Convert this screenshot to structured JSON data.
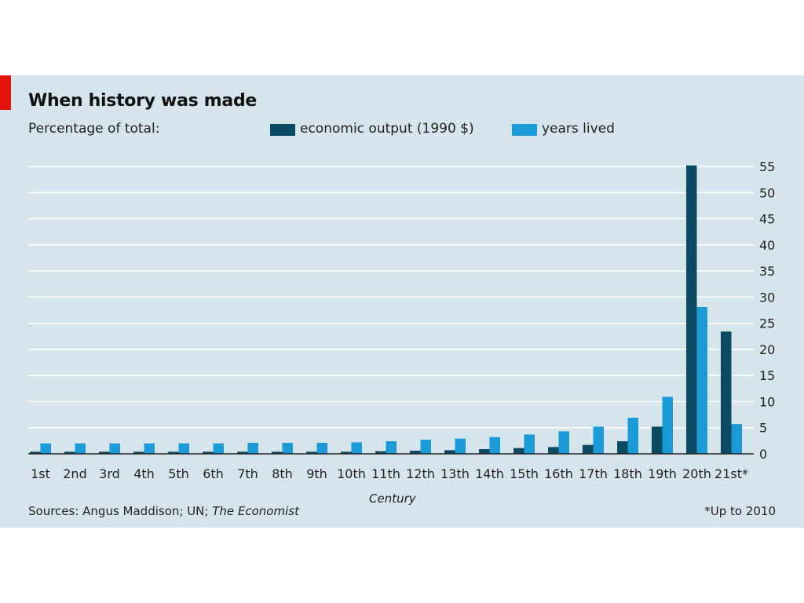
{
  "colors": {
    "background": "#d6e4ec",
    "brand_red": "#e3120b",
    "gridline": "#ffffff"
  },
  "header": {
    "title": "When history was made",
    "subtitle": "Percentage of total:"
  },
  "footer": {
    "source_prefix": "Sources: Angus Maddison; UN; ",
    "source_italic": "The Economist",
    "footnote": "*Up to 2010"
  },
  "chart_data": {
    "type": "bar",
    "title": "When history was made",
    "subtitle": "Percentage of total:",
    "xlabel": "Century",
    "ylabel": "",
    "ylim": [
      0,
      55
    ],
    "yticks": [
      0,
      5,
      10,
      15,
      20,
      25,
      30,
      35,
      40,
      45,
      50,
      55
    ],
    "grid": true,
    "legend_position": "top",
    "yaxis_side": "right",
    "categories": [
      "1st",
      "2nd",
      "3rd",
      "4th",
      "5th",
      "6th",
      "7th",
      "8th",
      "9th",
      "10th",
      "11th",
      "12th",
      "13th",
      "14th",
      "15th",
      "16th",
      "17th",
      "18th",
      "19th",
      "20th",
      "21st*"
    ],
    "series": [
      {
        "name": "economic output (1990 $)",
        "color": "#0b4a63",
        "values": [
          0.4,
          0.4,
          0.4,
          0.4,
          0.4,
          0.4,
          0.4,
          0.4,
          0.4,
          0.4,
          0.5,
          0.6,
          0.7,
          0.9,
          1.1,
          1.3,
          1.7,
          2.4,
          5.2,
          55.2,
          23.4
        ]
      },
      {
        "name": "years lived",
        "color": "#1a9ad6",
        "values": [
          2.0,
          2.0,
          2.0,
          2.0,
          2.0,
          2.0,
          2.1,
          2.1,
          2.1,
          2.2,
          2.4,
          2.7,
          2.9,
          3.2,
          3.7,
          4.3,
          5.2,
          6.9,
          10.9,
          28.1,
          5.7
        ]
      }
    ]
  }
}
